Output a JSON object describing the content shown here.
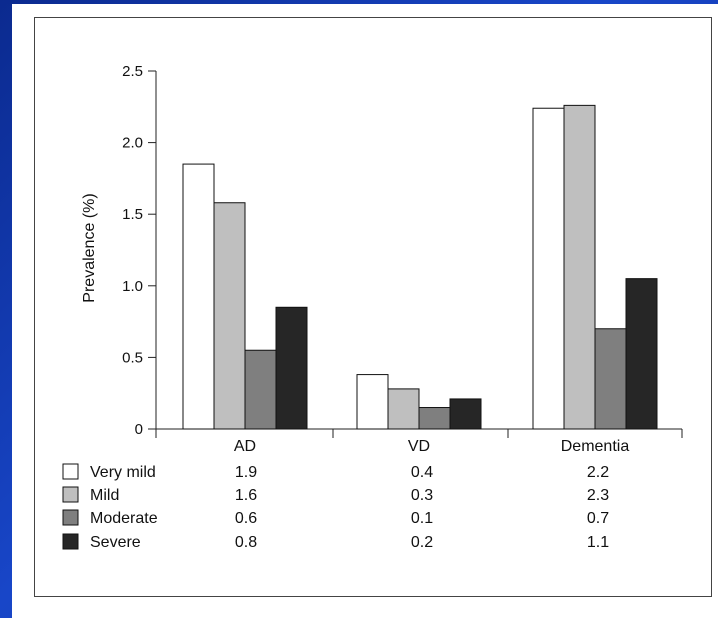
{
  "chart_data": {
    "type": "bar",
    "categories": [
      "AD",
      "VD",
      "Dementia"
    ],
    "ylabel": "Prevalence (%)",
    "ylim": [
      0,
      2.5
    ],
    "yticks": [
      "0",
      "0.5",
      "1.0",
      "1.5",
      "2.0",
      "2.5"
    ],
    "grid": false,
    "series": [
      {
        "name": "Very mild",
        "values": [
          1.85,
          0.38,
          2.24
        ],
        "table_values": [
          "1.9",
          "0.4",
          "2.2"
        ],
        "color": "#ffffff"
      },
      {
        "name": "Mild",
        "values": [
          1.58,
          0.28,
          2.26
        ],
        "table_values": [
          "1.6",
          "0.3",
          "2.3"
        ],
        "color": "#bfbfbf"
      },
      {
        "name": "Moderate",
        "values": [
          0.55,
          0.15,
          0.7
        ],
        "table_values": [
          "0.6",
          "0.1",
          "0.7"
        ],
        "color": "#7f7f7f"
      },
      {
        "name": "Severe",
        "values": [
          0.85,
          0.21,
          1.05
        ],
        "table_values": [
          "0.8",
          "0.2",
          "1.1"
        ],
        "color": "#262626"
      }
    ]
  }
}
